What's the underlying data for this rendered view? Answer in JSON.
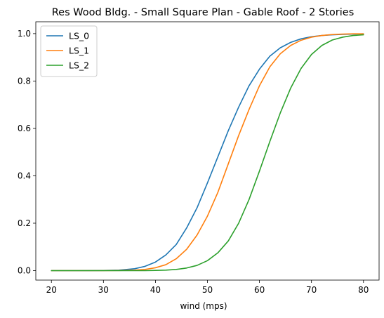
{
  "chart_data": {
    "type": "line",
    "title": "Res Wood Bldg. - Small Square Plan - Gable Roof - 2 Stories",
    "xlabel": "wind (mps)",
    "ylabel": "",
    "xlim": [
      17.0,
      83.0
    ],
    "ylim": [
      -0.04,
      1.05
    ],
    "xticks": [
      20,
      30,
      40,
      50,
      60,
      70,
      80
    ],
    "xtick_labels": [
      "20",
      "30",
      "40",
      "50",
      "60",
      "70",
      "80"
    ],
    "yticks": [
      0.0,
      0.2,
      0.4,
      0.6,
      0.8,
      1.0
    ],
    "ytick_labels": [
      "0.0",
      "0.2",
      "0.4",
      "0.6",
      "0.8",
      "1.0"
    ],
    "grid": false,
    "legend_position": "top-left",
    "x": [
      20,
      25,
      30,
      33,
      36,
      38,
      40,
      42,
      44,
      46,
      48,
      50,
      52,
      54,
      56,
      58,
      60,
      62,
      64,
      66,
      68,
      70,
      72,
      74,
      76,
      78,
      80
    ],
    "series": [
      {
        "name": "LS_0",
        "color": "#1f77b4",
        "values": [
          0.0,
          0.0,
          0.0005,
          0.002,
          0.008,
          0.018,
          0.036,
          0.066,
          0.11,
          0.18,
          0.265,
          0.37,
          0.48,
          0.59,
          0.69,
          0.78,
          0.85,
          0.905,
          0.94,
          0.963,
          0.978,
          0.987,
          0.992,
          0.995,
          0.997,
          0.998,
          0.999
        ]
      },
      {
        "name": "LS_1",
        "color": "#ff7f0e",
        "values": [
          0.0,
          0.0,
          0.0,
          0.0005,
          0.002,
          0.005,
          0.012,
          0.025,
          0.05,
          0.09,
          0.15,
          0.23,
          0.33,
          0.45,
          0.57,
          0.68,
          0.78,
          0.86,
          0.915,
          0.95,
          0.972,
          0.985,
          0.992,
          0.996,
          0.998,
          0.999,
          0.999
        ]
      },
      {
        "name": "LS_2",
        "color": "#2ca02c",
        "values": [
          0.0,
          0.0,
          0.0,
          0.0,
          0.0,
          0.0,
          0.0008,
          0.002,
          0.005,
          0.011,
          0.022,
          0.042,
          0.075,
          0.125,
          0.2,
          0.3,
          0.42,
          0.545,
          0.665,
          0.77,
          0.853,
          0.912,
          0.95,
          0.973,
          0.985,
          0.992,
          0.995
        ]
      }
    ]
  }
}
